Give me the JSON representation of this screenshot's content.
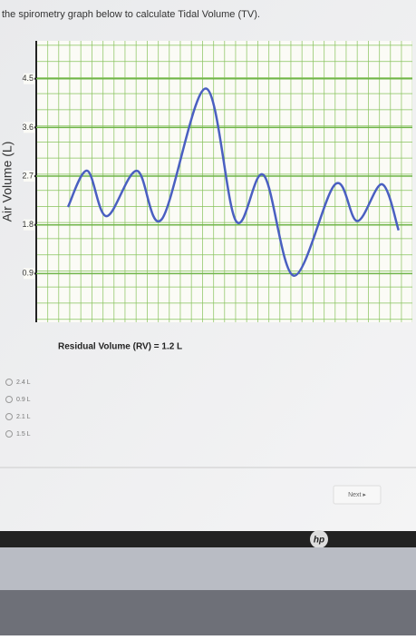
{
  "question": "the spirometry graph below to calculate Tidal Volume (TV).",
  "chart_data": {
    "type": "line",
    "y_label": "Air Volume (L)",
    "x": [
      0,
      0.7,
      1.4,
      2.5,
      3.4,
      5,
      6.1,
      7.1,
      8.2,
      9.7,
      10.5,
      11.4,
      12
    ],
    "series": [
      {
        "color": "#4a5fc1",
        "values": [
          2.13,
          2.8,
          1.96,
          2.8,
          1.9,
          4.32,
          1.87,
          2.72,
          0.86,
          2.55,
          1.87,
          2.55,
          1.7
        ]
      }
    ],
    "xlim": [
      -1.15,
      12.5
    ],
    "ylim": [
      0,
      5.2
    ],
    "yticks": [
      0.9,
      1.8,
      2.7,
      3.6,
      4.5
    ],
    "grid": true,
    "note": "Residual Volume (RV) = 1.2 L"
  },
  "options": [
    "2.4 L",
    "0.9 L",
    "2.1 L",
    "1.5 L"
  ],
  "button": "Next ▸"
}
